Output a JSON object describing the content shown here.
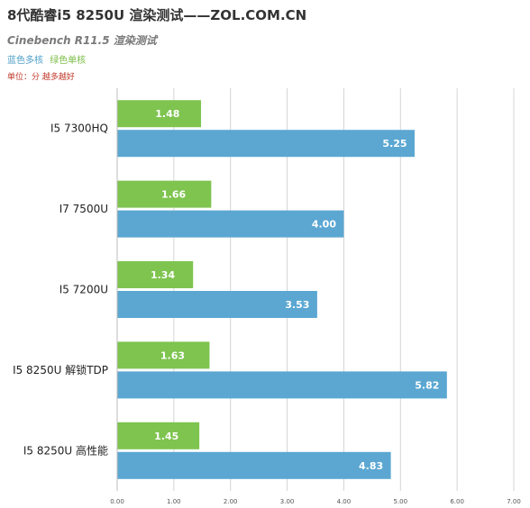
{
  "header": {
    "title": "8代酷睿i5 8250U 渲染测试——ZOL.COM.CN",
    "subtitle": "Cinebench R11.5 渲染测试",
    "legend_blue": "蓝色多核",
    "legend_green": "绿色单核",
    "unit_note": "单位：分 越多越好"
  },
  "colors": {
    "multi_core": "#5ba7d2",
    "single_core": "#7ec44f",
    "grid": "#d4d4d4",
    "axis_text": "#555555",
    "label_text": "#222222",
    "value_text": "#ffffff"
  },
  "chart_data": {
    "type": "bar",
    "orientation": "horizontal",
    "categories": [
      "I5 7300HQ",
      "I7 7500U",
      "I5 7200U",
      "I5 8250U 解锁TDP",
      "I5 8250U 高性能"
    ],
    "series": [
      {
        "name": "绿色单核",
        "values": [
          1.48,
          1.66,
          1.34,
          1.63,
          1.45
        ],
        "value_labels": [
          "1.48",
          "1.66",
          "1.34",
          "1.63",
          "1.45"
        ]
      },
      {
        "name": "蓝色多核",
        "values": [
          5.25,
          4.0,
          3.53,
          5.82,
          4.83
        ],
        "value_labels": [
          "5.25",
          "4.00",
          "3.53",
          "5.82",
          "4.83"
        ]
      }
    ],
    "xlim": [
      0,
      7
    ],
    "xticks": [
      "0.00",
      "1.00",
      "2.00",
      "3.00",
      "4.00",
      "5.00",
      "6.00",
      "7.00"
    ],
    "grid": true,
    "legend": "top-left"
  }
}
